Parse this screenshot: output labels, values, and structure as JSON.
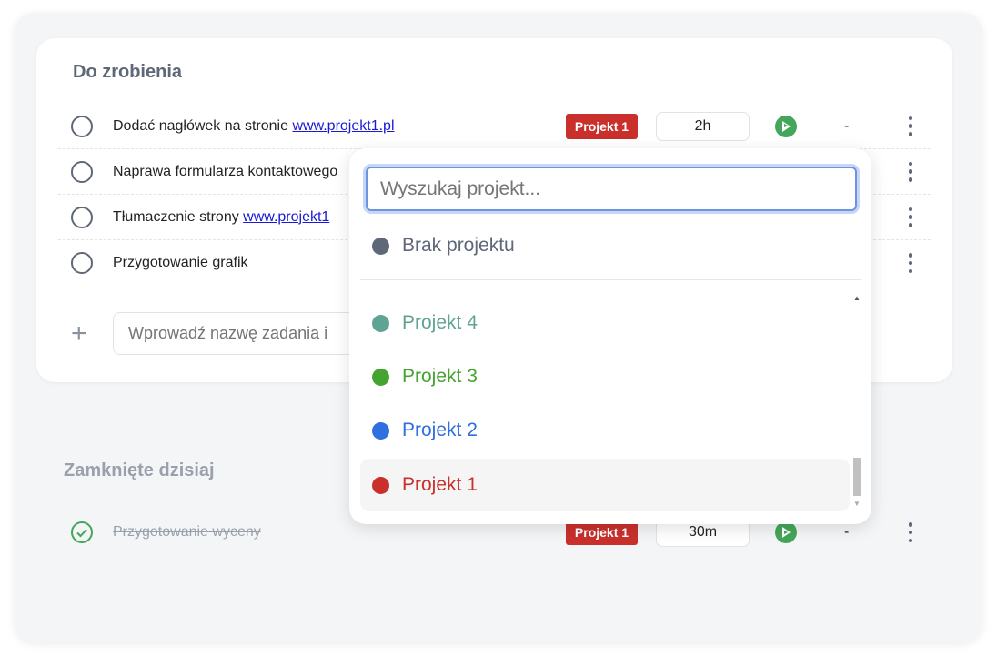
{
  "todo": {
    "title": "Do zrobienia",
    "tasks": [
      {
        "pre": "Dodać nagłówek na stronie ",
        "link": "www.projekt1.pl",
        "project": "Projekt 1",
        "time": "2h",
        "extra": "-"
      },
      {
        "pre": "Naprawa formularza kontaktowego",
        "link": ""
      },
      {
        "pre": "Tłumaczenie strony ",
        "link": "www.projekt1"
      },
      {
        "pre": "Przygotowanie grafik",
        "link": ""
      }
    ],
    "new_task_placeholder": "Wprowadź nazwę zadania i"
  },
  "closed": {
    "title": "Zamknięte dzisiaj",
    "tasks": [
      {
        "text": "Przygotowanie wyceny",
        "project": "Projekt 1",
        "time": "30m",
        "extra": "-"
      }
    ]
  },
  "dropdown": {
    "search_placeholder": "Wyszukaj projekt...",
    "none": {
      "label": "Brak projektu",
      "color": "#5f6878"
    },
    "projects": [
      {
        "label": "Projekt 4",
        "color": "#5fa394"
      },
      {
        "label": "Projekt 3",
        "color": "#45a42f"
      },
      {
        "label": "Projekt 2",
        "color": "#2f6fe0"
      },
      {
        "label": "Projekt 1",
        "color": "#c9302c",
        "selected": true
      }
    ]
  },
  "colors": {
    "badge": "#c9302c",
    "play": "#43a65a",
    "accent": "#6d94e3"
  }
}
